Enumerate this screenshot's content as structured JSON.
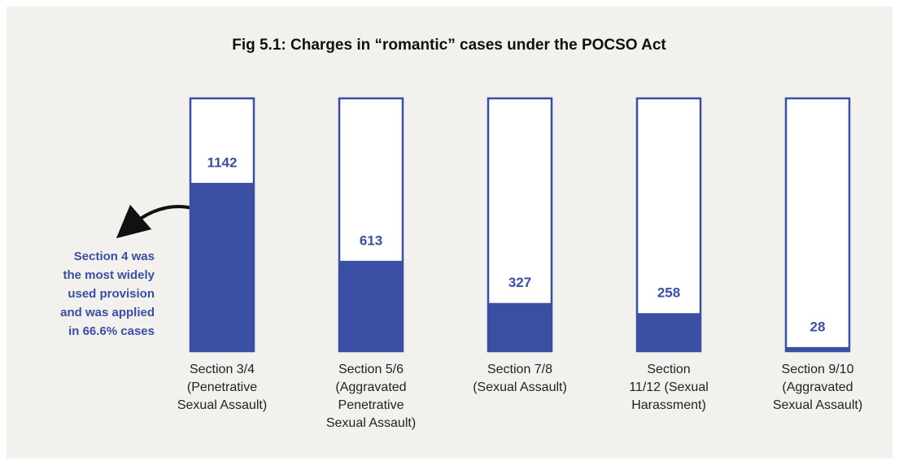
{
  "chart_data": {
    "type": "bar",
    "title": "Fig 5.1: Charges in “romantic” cases under the POCSO Act",
    "categories": [
      [
        "Section 3/4",
        "(Penetrative",
        "Sexual Assault)"
      ],
      [
        "Section 5/6",
        "(Aggravated",
        "Penetrative",
        "Sexual Assault)"
      ],
      [
        "Section 7/8",
        "(Sexual Assault)"
      ],
      [
        "Section",
        "11/12 (Sexual",
        "Harassment)"
      ],
      [
        "Section 9/10",
        "(Aggravated",
        "Sexual Assault)"
      ]
    ],
    "values": [
      1142,
      613,
      327,
      258,
      28
    ],
    "color": "#3a4fa3",
    "ylim": [
      0,
      1715
    ],
    "annotation": [
      "Section 4 was",
      "the most widely",
      "used provision",
      "and was applied",
      "in 66.6% cases"
    ]
  }
}
